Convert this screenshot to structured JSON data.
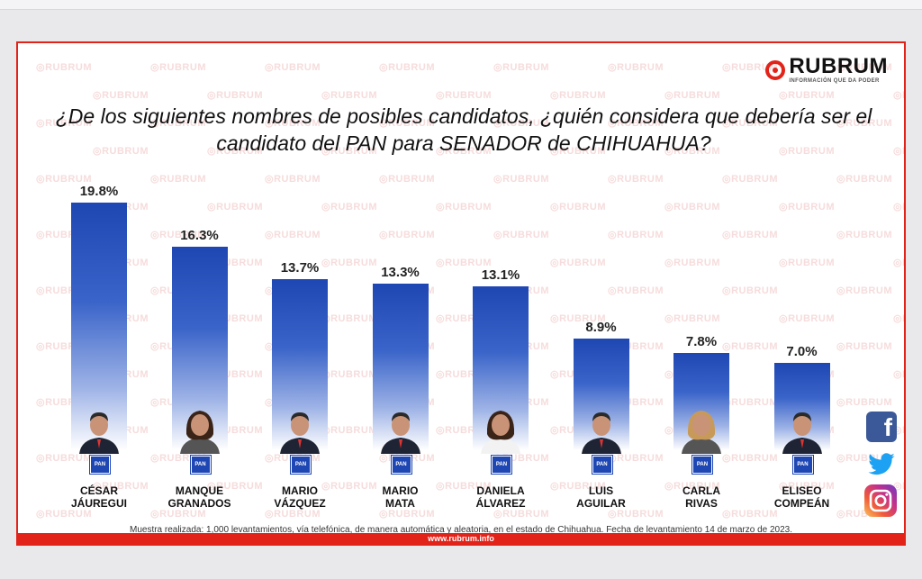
{
  "brand": {
    "name": "RUBRUM",
    "tagline": "INFORMACIÓN QUE DA PODER",
    "watermark": "RUBRUM",
    "accent": "#e2231a",
    "bar_color": "#1f47b3"
  },
  "question": "¿De los siguientes nombres de posibles candidatos, ¿quién considera que debería ser el candidato del PAN para SENADOR de CHIHUAHUA?",
  "chart_data": {
    "type": "bar",
    "categories": [
      "CÉSAR JÁUREGUI",
      "MANQUE GRANADOS",
      "MARIO VÁZQUEZ",
      "MARIO MATA",
      "DANIELA ÁLVAREZ",
      "LUIS AGUILAR",
      "CARLA RIVAS",
      "ELISEO COMPEÁN"
    ],
    "values": [
      19.8,
      16.3,
      13.7,
      13.3,
      13.1,
      8.9,
      7.8,
      7.0
    ],
    "labels": [
      "19.8%",
      "16.3%",
      "13.7%",
      "13.3%",
      "13.1%",
      "8.9%",
      "7.8%",
      "7.0%"
    ],
    "name_lines": [
      "CÉSAR\nJÁUREGUI",
      "MANQUE\nGRANADOS",
      "MARIO\nVÁZQUEZ",
      "MARIO\nMATA",
      "DANIELA\nÁLVAREZ",
      "LUIS\nAGUILAR",
      "CARLA\nRIVAS",
      "ELISEO\nCOMPEÁN"
    ],
    "party_badge": "PAN",
    "ylim": [
      0,
      20
    ],
    "grid": false,
    "legend": "none"
  },
  "footnote": "Muestra realizada: 1,000 levantamientos, vía telefónica, de manera automática y aleatoria, en el estado de Chihuahua. Fecha de levantamiento 14 de marzo de 2023.",
  "website": "www.rubrum.info",
  "social": [
    "facebook-icon",
    "twitter-icon",
    "instagram-icon"
  ],
  "facebook_glyph": "f"
}
